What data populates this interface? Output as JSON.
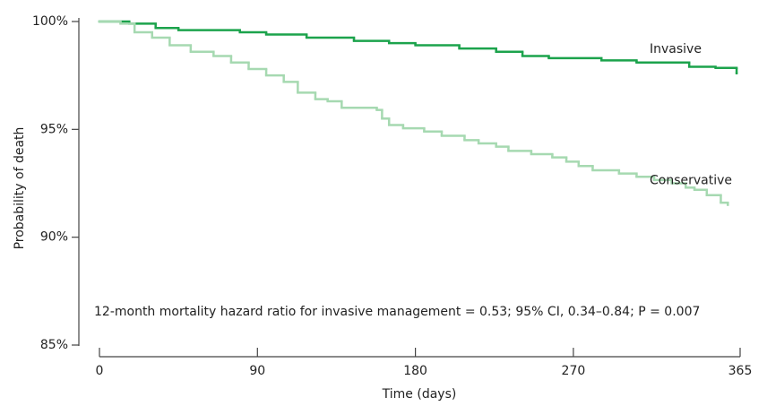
{
  "chart_data": {
    "type": "step",
    "y_label": "Probability of death",
    "x_label": "Time (days)",
    "annotation": "12-month mortality hazard ratio for invasive management = 0.53; 95% CI, 0.34–0.84; P = 0.007",
    "xlim": [
      0,
      365
    ],
    "xticks": [
      0,
      90,
      180,
      270,
      365
    ],
    "ylim": [
      85,
      100
    ],
    "yticks": [
      {
        "value": 85,
        "label": "85%"
      },
      {
        "value": 90,
        "label": "90%"
      },
      {
        "value": 95,
        "label": "95%"
      },
      {
        "value": 100,
        "label": "100%"
      }
    ],
    "series": [
      {
        "name": "Invasive",
        "color": "#1ca34c",
        "x": [
          0,
          17,
          32,
          45,
          80,
          95,
          118,
          145,
          165,
          180,
          205,
          226,
          241,
          256,
          286,
          306,
          336,
          351,
          363
        ],
        "values": [
          100,
          99.9,
          99.7,
          99.6,
          99.5,
          99.4,
          99.25,
          99.1,
          99.0,
          98.9,
          98.75,
          98.6,
          98.4,
          98.3,
          98.2,
          98.1,
          97.9,
          97.85,
          97.6
        ]
      },
      {
        "name": "Conservative",
        "color": "#a6d9b1",
        "x": [
          0,
          12,
          20,
          30,
          40,
          52,
          65,
          75,
          85,
          95,
          105,
          113,
          123,
          130,
          138,
          158,
          161,
          165,
          173,
          185,
          195,
          208,
          216,
          226,
          233,
          246,
          258,
          266,
          273,
          281,
          296,
          306,
          316,
          326,
          334,
          339,
          346,
          354,
          358
        ],
        "values": [
          100,
          99.9,
          99.5,
          99.25,
          98.9,
          98.6,
          98.4,
          98.1,
          97.8,
          97.5,
          97.2,
          96.7,
          96.4,
          96.3,
          96.0,
          95.9,
          95.5,
          95.2,
          95.05,
          94.9,
          94.7,
          94.5,
          94.35,
          94.2,
          94.0,
          93.85,
          93.7,
          93.5,
          93.3,
          93.1,
          92.95,
          92.8,
          92.65,
          92.5,
          92.3,
          92.2,
          91.95,
          91.6,
          91.5
        ]
      }
    ]
  }
}
